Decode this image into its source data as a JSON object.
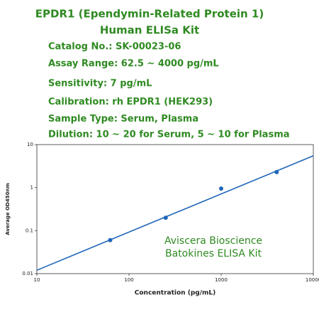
{
  "header": {
    "title": [
      "EPDR1 (Ependymin-Related Protein 1)",
      "Human ELISa Kit"
    ],
    "details": [
      "Catalog No.: SK-00023-06",
      "Assay Range: 62.5 ~ 4000 pg/mL",
      "Sensitivity: 7 pg/mL",
      "Calibration: rh EPDR1 (HEK293)",
      "Sample Type: Serum, Plasma",
      "Dilution: 10 ~ 20 for Serum, 5 ~ 10 for Plasma"
    ]
  },
  "chart_data": {
    "type": "scatter",
    "x_label": "Concentration (pg/mL)",
    "y_label": "Average OD450nm",
    "x": [
      62.5,
      250,
      1000,
      4000
    ],
    "values": [
      0.06,
      0.2,
      0.95,
      2.3
    ],
    "color": "#1f66b8",
    "fit_line": {
      "x": [
        10,
        10000
      ],
      "values": [
        0.012,
        5.5
      ]
    },
    "xlim": [
      10,
      10000
    ],
    "ylim": [
      0.01,
      10
    ],
    "xlog": true,
    "ylog": true,
    "xticks": [
      10,
      100,
      1000,
      10000
    ],
    "yticks": [
      0.01,
      0.1,
      1,
      10
    ],
    "annotations": [
      "Aviscera Bioscience",
      "Batokines ELISA Kit"
    ],
    "annotation_color": "#2f8a22"
  }
}
